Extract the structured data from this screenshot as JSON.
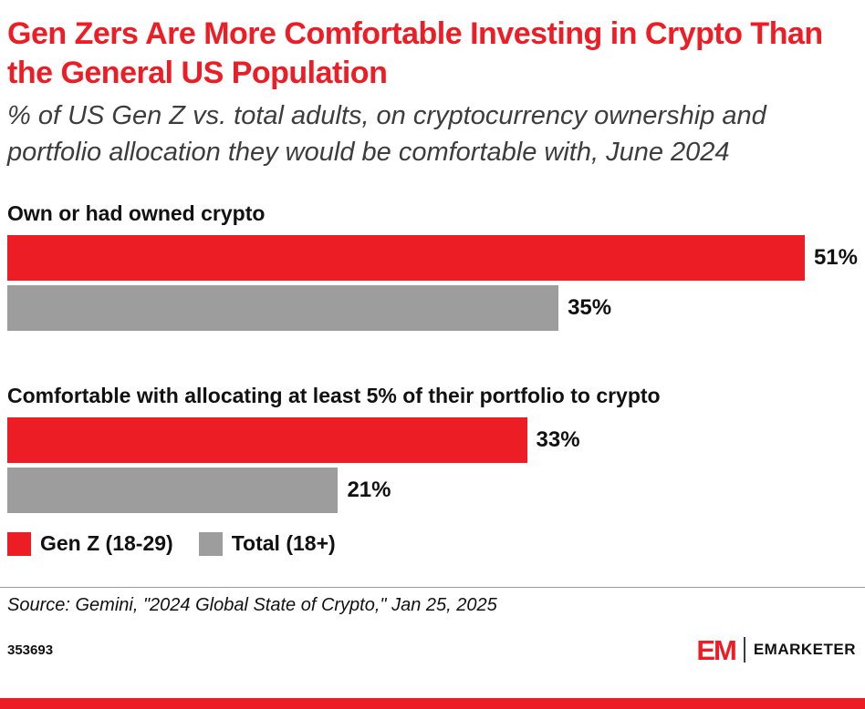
{
  "header": {
    "title": "Gen Zers Are More Comfortable Investing in Crypto Than the General US Population",
    "subtitle": "% of US Gen Z vs. total adults, on cryptocurrency ownership and portfolio allocation they would be comfortable with, June 2024"
  },
  "chart_data": {
    "type": "bar",
    "orientation": "horizontal",
    "unit": "%",
    "xmax": 54,
    "grid": false,
    "legend_position": "bottom",
    "groups": [
      {
        "label": "Own or had owned crypto",
        "bars": [
          {
            "series": "Gen Z (18-29)",
            "value": 51,
            "display": "51%",
            "color": "#EC1D25"
          },
          {
            "series": "Total (18+)",
            "value": 35,
            "display": "35%",
            "color": "#9D9D9D"
          }
        ]
      },
      {
        "label": "Comfortable with allocating at least 5% of their portfolio to crypto",
        "bars": [
          {
            "series": "Gen Z (18-29)",
            "value": 33,
            "display": "33%",
            "color": "#EC1D25"
          },
          {
            "series": "Total (18+)",
            "value": 21,
            "display": "21%",
            "color": "#9D9D9D"
          }
        ]
      }
    ],
    "legend": [
      {
        "label": "Gen Z (18-29)",
        "color": "#EC1D25"
      },
      {
        "label": "Total (18+)",
        "color": "#9D9D9D"
      }
    ]
  },
  "footer": {
    "source": "Source: Gemini, \"2024 Global State of Crypto,\" Jan 25, 2025",
    "chart_id": "353693",
    "brand": {
      "logo_text": "EM",
      "name": "EMARKETER"
    }
  },
  "colors": {
    "title_red": "#EC1D25",
    "bar_red": "#EC1D25",
    "bar_gray": "#9D9D9D",
    "bottom_strip_red": "#EC1D25"
  }
}
